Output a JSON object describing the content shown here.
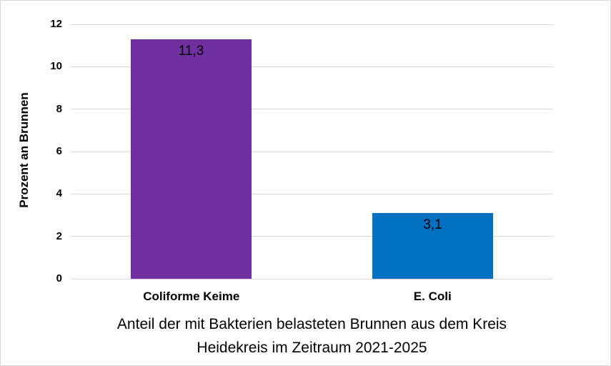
{
  "chart_data": {
    "type": "bar",
    "title_lines": [
      "Anteil der mit Bakterien belasteten Brunnen aus dem Kreis",
      "Heidekreis im Zeitraum 2021-2025"
    ],
    "ylabel": "Prozent an Brunnen",
    "xlabel": "",
    "categories": [
      "Coliforme Keime",
      "E. Coli"
    ],
    "values": [
      11.3,
      3.1
    ],
    "value_labels": [
      "11,3",
      "3,1"
    ],
    "bar_colors": [
      "#7030A0",
      "#0070C0"
    ],
    "yticks": [
      0,
      2,
      4,
      6,
      8,
      10,
      12
    ],
    "ytick_labels": [
      "0",
      "2",
      "4",
      "6",
      "8",
      "10",
      "12"
    ],
    "ylim": [
      0,
      12
    ],
    "grid": true,
    "gridline_color": "#d9d9d9",
    "background_color": "#ffffff",
    "frame_color": "#d9d9d9",
    "value_label_position": "inside-end",
    "legend": "none"
  }
}
